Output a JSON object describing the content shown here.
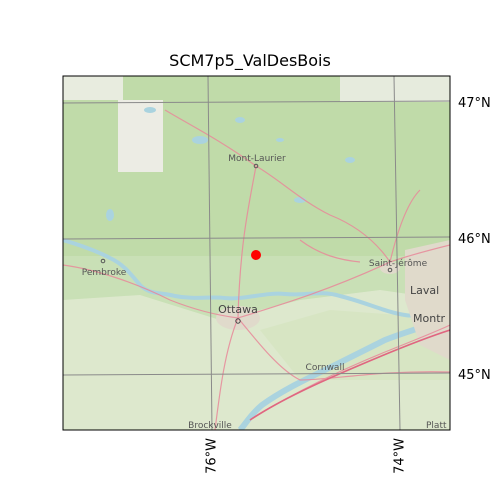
{
  "title": "SCM7p5_ValDesBois",
  "map": {
    "lat_ticks": [
      "47°N",
      "46°N",
      "45°N"
    ],
    "lon_ticks": [
      "76°W",
      "74°W"
    ],
    "places": [
      {
        "name": "Mont-Laurier",
        "type": "town"
      },
      {
        "name": "Pembroke",
        "type": "town"
      },
      {
        "name": "Saint-Jérôme",
        "type": "town"
      },
      {
        "name": "Ottawa",
        "type": "city"
      },
      {
        "name": "Laval",
        "type": "city"
      },
      {
        "name": "Montr",
        "type": "city"
      },
      {
        "name": "Cornwall",
        "type": "town"
      },
      {
        "name": "Brockville",
        "type": "town"
      },
      {
        "name": "Platt",
        "type": "town"
      }
    ],
    "marker": {
      "label": "",
      "color": "#ff0000"
    },
    "colors": {
      "land": "#cfe3bf",
      "forest": "#b5d29e",
      "water": "#aad3df",
      "urban": "#e3ddd0",
      "roads": "#e8899a",
      "gridlines": "#8a8a8a"
    }
  }
}
